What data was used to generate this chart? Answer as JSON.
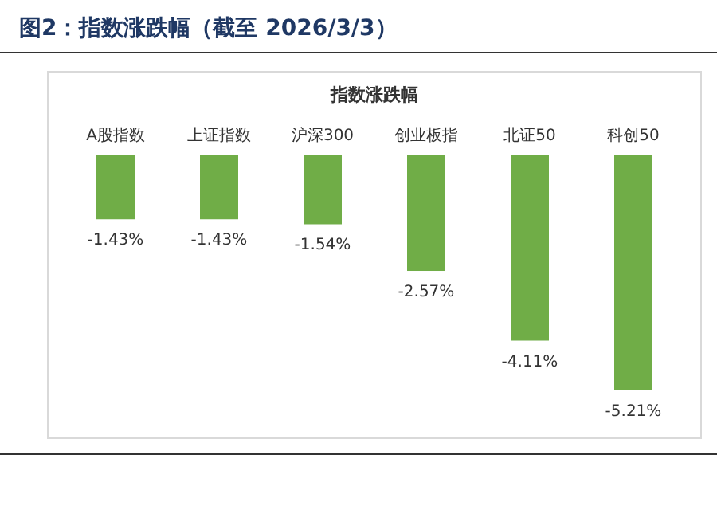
{
  "chart_data": {
    "type": "bar",
    "title": "图2：指数涨跌幅（截至 2026/3/3）",
    "subtitle": "指数涨跌幅",
    "categories": [
      "A股指数",
      "上证指数",
      "沪深300",
      "创业板指",
      "北证50",
      "科创50"
    ],
    "values": [
      -1.43,
      -1.43,
      -1.54,
      -2.57,
      -4.11,
      -5.21
    ],
    "value_labels": [
      "-1.43%",
      "-1.43%",
      "-1.54%",
      "-2.57%",
      "-4.11%",
      "-5.21%"
    ],
    "color": "#70ad47"
  }
}
